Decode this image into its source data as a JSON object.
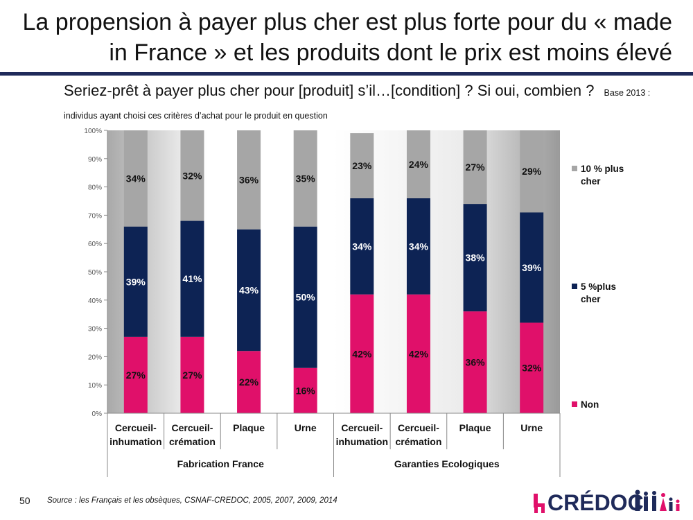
{
  "title": "La propension à payer plus cher est plus forte pour du « made in France » et les produits dont le prix est moins élevé",
  "question": "Seriez-prêt à payer plus cher pour [produit] s’il…[condition] ? Si oui, combien ?",
  "base_note": "Base 2013 : individus ayant choisi ces critères d’achat pour le produit en question",
  "page_number": "50",
  "source": "Source : les Français et les obsèques, CSNAF-CREDOC, 2005, 2007, 2009, 2014",
  "logo_text": "CRÉDOC",
  "colors": {
    "non": "#e0106a",
    "cinq": "#0d2354",
    "dix": "#a6a6a6",
    "title_rule": "#1f2a5a"
  },
  "chart_data": {
    "type": "bar",
    "stacked": true,
    "ylim": [
      0,
      100
    ],
    "yticks": [
      "0%",
      "10%",
      "20%",
      "30%",
      "40%",
      "50%",
      "60%",
      "70%",
      "80%",
      "90%",
      "100%"
    ],
    "categories": [
      [
        "Cercueil-",
        "inhumation"
      ],
      [
        "Cercueil-",
        "crémation"
      ],
      [
        "Plaque"
      ],
      [
        "Urne"
      ],
      [
        "Cercueil-",
        "inhumation"
      ],
      [
        "Cercueil-",
        "crémation"
      ],
      [
        "Plaque"
      ],
      [
        "Urne"
      ]
    ],
    "groups": [
      {
        "label": "Fabrication France",
        "categories": [
          0,
          1,
          2,
          3
        ]
      },
      {
        "label": "Garanties Ecologiques",
        "categories": [
          4,
          5,
          6,
          7
        ]
      }
    ],
    "series": [
      {
        "name": "Non",
        "color": "#e0106a",
        "values": [
          27,
          27,
          22,
          16,
          42,
          42,
          36,
          32
        ],
        "labels": [
          "27%",
          "27%",
          "22%",
          "16%",
          "42%",
          "42%",
          "36%",
          "32%"
        ]
      },
      {
        "name": "5 %plus cher",
        "color": "#0d2354",
        "values": [
          39,
          41,
          43,
          50,
          34,
          34,
          38,
          39
        ],
        "labels": [
          "39%",
          "41%",
          "43%",
          "50%",
          "34%",
          "34%",
          "38%",
          "39%"
        ]
      },
      {
        "name": "10 % plus cher",
        "color": "#a6a6a6",
        "values": [
          34,
          32,
          36,
          35,
          23,
          24,
          27,
          29
        ],
        "labels": [
          "34%",
          "32%",
          "36%",
          "35%",
          "23%",
          "24%",
          "27%",
          "29%"
        ]
      }
    ],
    "legend": [
      "10 % plus cher",
      "5 %plus cher",
      "Non"
    ],
    "legend_position": "right"
  }
}
